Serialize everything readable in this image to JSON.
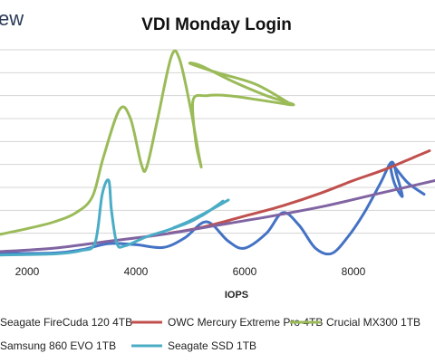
{
  "brand": "ew",
  "chart_data": {
    "type": "line",
    "title": "VDI Monday Login",
    "xlabel": "IOPS",
    "ylabel": "",
    "xlim": [
      1500,
      9500
    ],
    "ylim": [
      0,
      9
    ],
    "grid": true,
    "x_ticks": [
      "2000",
      "4000",
      "6000",
      "8000"
    ],
    "legend_position": "bottom",
    "series": [
      {
        "name": "Seagate FireCuda 120 4TB",
        "color": "#4472c4",
        "points": [
          [
            1500,
            0.12
          ],
          [
            2500,
            0.14
          ],
          [
            3000,
            0.28
          ],
          [
            3500,
            0.55
          ],
          [
            4000,
            0.5
          ],
          [
            4500,
            0.38
          ],
          [
            4900,
            0.8
          ],
          [
            5300,
            1.5
          ],
          [
            5700,
            0.65
          ],
          [
            6000,
            0.35
          ],
          [
            6400,
            1.0
          ],
          [
            6700,
            1.9
          ],
          [
            7000,
            1.35
          ],
          [
            7300,
            0.35
          ],
          [
            7600,
            0.12
          ],
          [
            7900,
            0.85
          ],
          [
            8200,
            1.9
          ],
          [
            8500,
            3.2
          ],
          [
            8700,
            4.1
          ],
          [
            8800,
            3.5
          ],
          [
            8900,
            2.6
          ],
          [
            8750,
            3.2
          ],
          [
            8700,
            4.0
          ],
          [
            9000,
            3.2
          ],
          [
            9300,
            2.7
          ]
        ]
      },
      {
        "name": "OWC Mercury Extreme Pro 4TB",
        "color": "#c0504d",
        "points": [
          [
            4600,
            1.0
          ],
          [
            5200,
            1.25
          ],
          [
            6000,
            1.75
          ],
          [
            6700,
            2.2
          ],
          [
            7400,
            2.75
          ],
          [
            8000,
            3.3
          ],
          [
            8600,
            3.8
          ],
          [
            9100,
            4.3
          ],
          [
            9400,
            4.6
          ]
        ]
      },
      {
        "name": "Crucial MX300 1TB",
        "color": "#9bbb59",
        "points": [
          [
            1500,
            0.95
          ],
          [
            2000,
            1.2
          ],
          [
            2500,
            1.5
          ],
          [
            2900,
            1.9
          ],
          [
            3200,
            2.6
          ],
          [
            3400,
            4.3
          ],
          [
            3700,
            6.4
          ],
          [
            3900,
            6.0
          ],
          [
            4100,
            4.0
          ],
          [
            4200,
            3.9
          ],
          [
            4400,
            6.0
          ],
          [
            4650,
            8.7
          ],
          [
            4800,
            8.6
          ],
          [
            5000,
            6.5
          ],
          [
            5150,
            4.5
          ],
          [
            5200,
            3.9
          ],
          [
            5100,
            5.0
          ],
          [
            5050,
            6.8
          ],
          [
            5300,
            7.0
          ],
          [
            5700,
            7.0
          ],
          [
            6300,
            6.8
          ],
          [
            6900,
            6.6
          ],
          [
            6400,
            7.0
          ],
          [
            5800,
            7.6
          ],
          [
            5200,
            8.3
          ],
          [
            5000,
            8.4
          ],
          [
            5500,
            8.0
          ],
          [
            6200,
            7.5
          ],
          [
            6800,
            6.7
          ]
        ]
      },
      {
        "name": "Samsung 860 EVO 1TB",
        "color": "#8064a2",
        "points": [
          [
            1500,
            0.2
          ],
          [
            2500,
            0.35
          ],
          [
            3500,
            0.65
          ],
          [
            4500,
            0.95
          ],
          [
            5500,
            1.35
          ],
          [
            6500,
            1.75
          ],
          [
            7500,
            2.2
          ],
          [
            8500,
            2.75
          ],
          [
            9500,
            3.3
          ]
        ]
      },
      {
        "name": "Seagate SSD 1TB",
        "color": "#4bacc6",
        "points": [
          [
            1500,
            0.05
          ],
          [
            2500,
            0.1
          ],
          [
            3000,
            0.25
          ],
          [
            3250,
            0.6
          ],
          [
            3380,
            2.7
          ],
          [
            3500,
            3.3
          ],
          [
            3550,
            2.0
          ],
          [
            3650,
            0.55
          ],
          [
            3800,
            0.45
          ],
          [
            4200,
            0.85
          ],
          [
            4600,
            1.15
          ],
          [
            5000,
            1.5
          ],
          [
            5300,
            1.9
          ],
          [
            5600,
            2.4
          ],
          [
            5200,
            1.75
          ],
          [
            4700,
            1.25
          ],
          [
            5000,
            1.55
          ],
          [
            5400,
            2.05
          ],
          [
            5700,
            2.45
          ]
        ]
      }
    ]
  }
}
